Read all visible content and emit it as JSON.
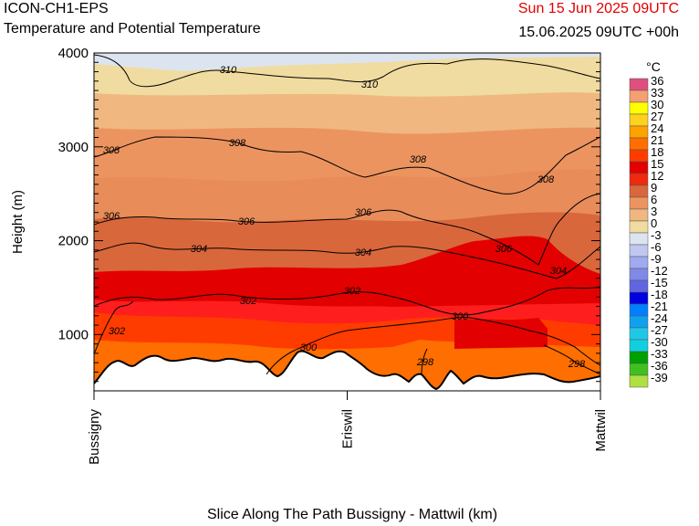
{
  "header": {
    "model": "ICON-CH1-EPS",
    "subtitle": "Temperature and Potential Temperature",
    "valid_date": "Sun 15 Jun 2025 09UTC",
    "run": "15.06.2025 09UTC +00h",
    "date_color": "#e30000"
  },
  "chart_data": {
    "type": "heatmap",
    "title": "Temperature and Potential Temperature",
    "xlabel": "Slice Along The Path Bussigny - Mattwil (km)",
    "ylabel": "Height (m)",
    "ylim": [
      400,
      4000
    ],
    "y_ticks": [
      "1000",
      "2000",
      "3000",
      "4000"
    ],
    "x_ticks": [
      "Bussigny",
      "Eriswil",
      "Mattwil"
    ],
    "colorbar": {
      "unit": "°C",
      "levels": [
        "36",
        "33",
        "30",
        "27",
        "24",
        "21",
        "18",
        "15",
        "12",
        "9",
        "6",
        "3",
        "0",
        "-3",
        "-6",
        "-9",
        "-12",
        "-15",
        "-18",
        "-21",
        "-24",
        "-27",
        "-30",
        "-33",
        "-36",
        "-39"
      ],
      "colors": [
        "#e0507f",
        "#f4a070",
        "#ffff00",
        "#ffd21e",
        "#ffa200",
        "#ff6e00",
        "#ff3c00",
        "#e20000",
        "#ef2a0d",
        "#d9673c",
        "#ec9460",
        "#f0b880",
        "#f0dca0",
        "#dce4f0",
        "#c0c8f0",
        "#a0aaf0",
        "#8088e8",
        "#6066e0",
        "#0000e0",
        "#0080ff",
        "#10a0f0",
        "#20c8e8",
        "#10d0e0",
        "#00a000",
        "#40c020",
        "#b0e040"
      ]
    },
    "temperature_bands_c": [
      "0-3",
      "3-6",
      "6-9",
      "9-12",
      "12-15",
      "15-18",
      "18-21"
    ],
    "theta_contours_k": [
      "298",
      "300",
      "302",
      "304",
      "306",
      "308",
      "310"
    ]
  }
}
